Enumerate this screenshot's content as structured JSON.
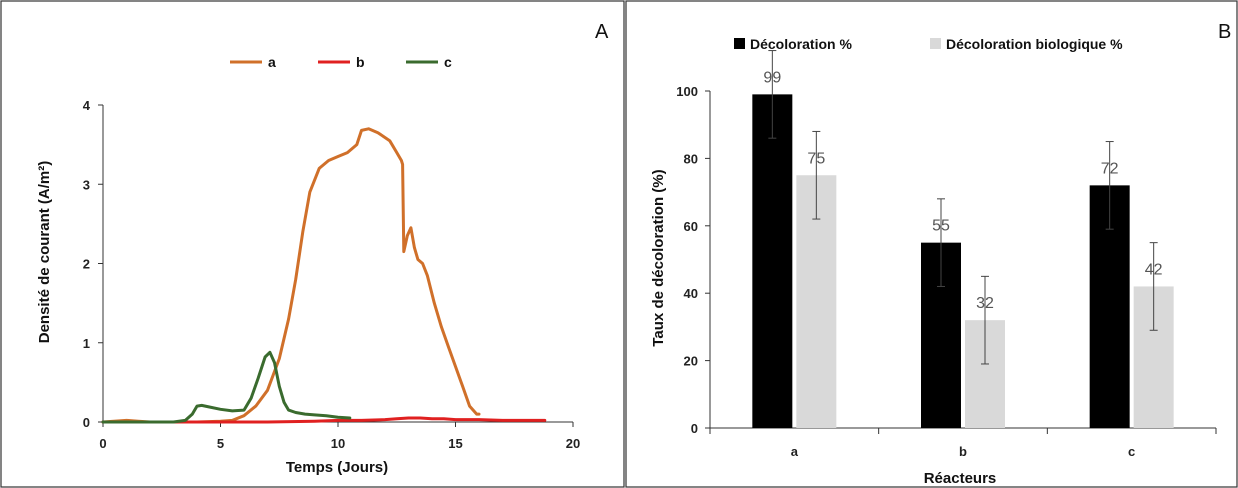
{
  "chart_data": [
    {
      "type": "line",
      "panel_label": "A",
      "title": "",
      "xlabel": "Temps (Jours)",
      "ylabel": "Densité de courant (A/m²)",
      "xlim": [
        0,
        20
      ],
      "ylim": [
        0,
        4
      ],
      "xticks": [
        "0",
        "5",
        "10",
        "15",
        "20"
      ],
      "yticks": [
        "0",
        "1",
        "2",
        "3",
        "4"
      ],
      "legend_position": "top",
      "grid": false,
      "series": [
        {
          "name": "a",
          "color": "#d0702a",
          "x": [
            0,
            1,
            1.5,
            2,
            3,
            4,
            5,
            5.5,
            6,
            6.5,
            7,
            7.5,
            7.9,
            8.2,
            8.5,
            8.8,
            9.2,
            9.6,
            10,
            10.4,
            10.6,
            10.8,
            11,
            11.3,
            11.7,
            12.2,
            12.5,
            12.7,
            12.75,
            12.8,
            12.95,
            13.1,
            13.25,
            13.4,
            13.6,
            13.8,
            14.1,
            14.4,
            14.7,
            15,
            15.3,
            15.6,
            15.9,
            16
          ],
          "y": [
            0,
            0.02,
            0.01,
            0,
            0,
            0,
            0.01,
            0.02,
            0.08,
            0.2,
            0.4,
            0.8,
            1.3,
            1.8,
            2.4,
            2.9,
            3.2,
            3.3,
            3.35,
            3.4,
            3.45,
            3.5,
            3.68,
            3.7,
            3.65,
            3.55,
            3.4,
            3.3,
            3.25,
            2.15,
            2.35,
            2.45,
            2.2,
            2.05,
            2.0,
            1.85,
            1.5,
            1.2,
            0.95,
            0.7,
            0.45,
            0.2,
            0.1,
            0.1
          ]
        },
        {
          "name": "b",
          "color": "#e02020",
          "x": [
            0,
            3,
            5,
            7,
            9,
            10,
            11,
            12,
            12.5,
            13,
            13.5,
            14,
            14.5,
            15,
            16,
            17,
            18,
            18.8
          ],
          "y": [
            0,
            0,
            0,
            0,
            0.01,
            0.02,
            0.02,
            0.03,
            0.04,
            0.05,
            0.05,
            0.04,
            0.04,
            0.03,
            0.03,
            0.02,
            0.02,
            0.02
          ]
        },
        {
          "name": "c",
          "color": "#3a6b2e",
          "x": [
            0,
            2,
            3,
            3.5,
            3.8,
            4.0,
            4.2,
            4.5,
            5,
            5.5,
            6,
            6.3,
            6.6,
            6.9,
            7.1,
            7.3,
            7.5,
            7.7,
            7.9,
            8.2,
            8.6,
            9,
            9.5,
            10,
            10.5
          ],
          "y": [
            0,
            0,
            0,
            0.02,
            0.1,
            0.2,
            0.21,
            0.19,
            0.16,
            0.14,
            0.15,
            0.3,
            0.55,
            0.82,
            0.88,
            0.75,
            0.45,
            0.25,
            0.15,
            0.12,
            0.1,
            0.09,
            0.08,
            0.06,
            0.05
          ]
        }
      ]
    },
    {
      "type": "bar",
      "panel_label": "B",
      "title": "",
      "xlabel": "Réacteurs",
      "ylabel": "Taux de décoloration (%)",
      "ylim": [
        0,
        100
      ],
      "yticks": [
        "0",
        "20",
        "40",
        "60",
        "80",
        "100"
      ],
      "categories": [
        "a",
        "b",
        "c"
      ],
      "legend_position": "top",
      "grid": false,
      "series": [
        {
          "name": "Décoloration  %",
          "color": "#000000",
          "values": [
            99,
            55,
            72
          ],
          "labels": [
            "99",
            "55",
            "72"
          ],
          "errors": [
            13,
            13,
            13
          ]
        },
        {
          "name": "Décoloration biologique %",
          "color": "#d9d9d9",
          "values": [
            75,
            32,
            42
          ],
          "labels": [
            "75",
            "32",
            "42"
          ],
          "errors": [
            13,
            13,
            13
          ]
        }
      ]
    }
  ]
}
